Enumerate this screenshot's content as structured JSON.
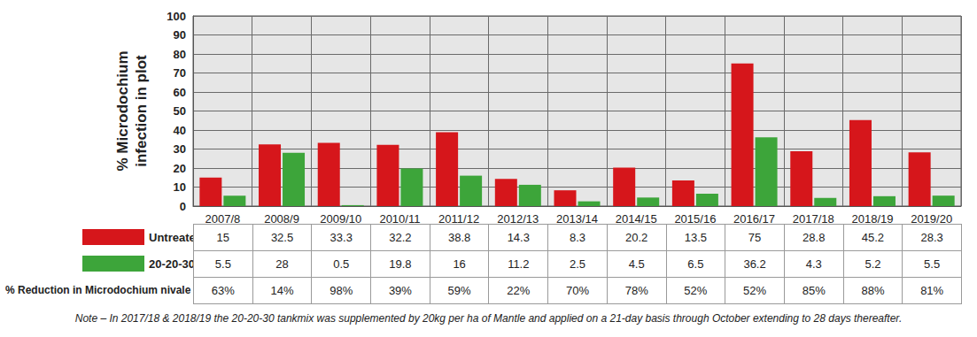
{
  "chart_data": {
    "type": "bar",
    "ylabel": "% Microdochium\ninfection in plot",
    "categories": [
      "2007/8",
      "2008/9",
      "2009/10",
      "2010/11",
      "2011/12",
      "2012/13",
      "2013/14",
      "2014/15",
      "2015/16",
      "2016/17",
      "2017/18",
      "2018/19",
      "2019/20"
    ],
    "series": [
      {
        "name": "Untreated",
        "color": "#d6161b",
        "values": [
          15,
          32.5,
          33.3,
          32.2,
          38.8,
          14.3,
          8.3,
          20.2,
          13.5,
          75,
          28.8,
          45.2,
          28.3
        ]
      },
      {
        "name": "20-20-30",
        "color": "#3da53a",
        "values": [
          5.5,
          28,
          0.5,
          19.8,
          16,
          11.2,
          2.5,
          4.5,
          6.5,
          36.2,
          4.3,
          5.2,
          5.5
        ]
      }
    ],
    "table_rows": [
      {
        "name": "% Reduction in Microdochium nivale",
        "values": [
          63,
          14,
          98,
          39,
          59,
          22,
          70,
          78,
          52,
          52,
          85,
          88,
          81
        ],
        "value_labels": [
          "63%",
          "14%",
          "98%",
          "39%",
          "59%",
          "22%",
          "70%",
          "78%",
          "52%",
          "52%",
          "85%",
          "88%",
          "81%"
        ]
      }
    ],
    "note": "Note – In 2017/18 & 2018/19 the 20-20-30 tankmix was supplemented by 20kg per ha of Mantle and applied on a 21-day basis through October extending to 28 days thereafter.",
    "ylim": [
      0,
      100
    ],
    "yticks": [
      0,
      10,
      20,
      30,
      40,
      50,
      60,
      70,
      80,
      90,
      100
    ],
    "grid": true
  }
}
